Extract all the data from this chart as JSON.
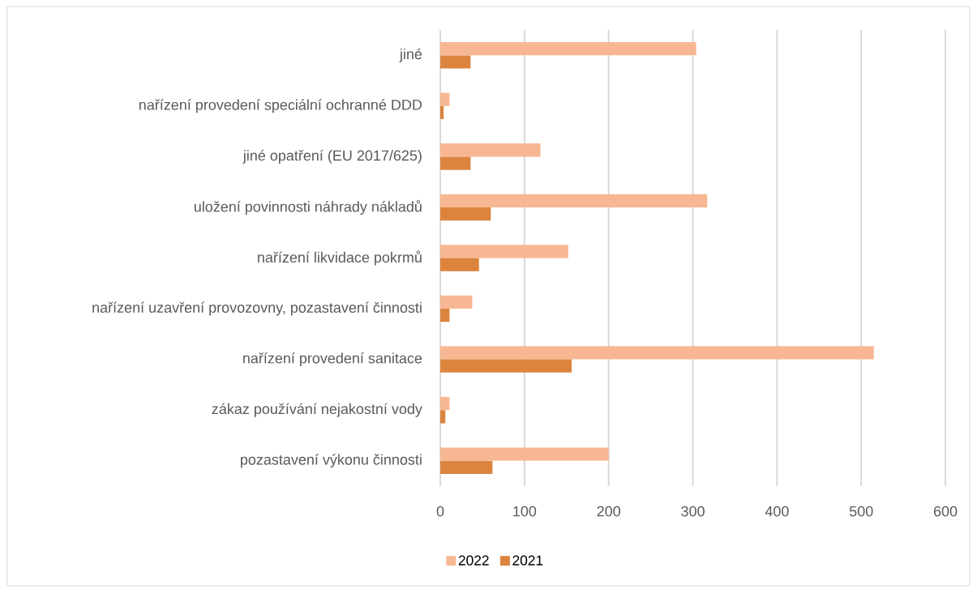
{
  "chart_data": {
    "type": "bar",
    "orientation": "horizontal",
    "categories": [
      "jiné",
      "nařízení provedení speciální ochranné DDD",
      "jiné opatření (EU 2017/625)",
      "uložení povinnosti náhrady nákladů",
      "nařízení likvidace pokrmů",
      "nařízení uzavření provozovny, pozastavení činnosti",
      "nařízení provedení sanitace",
      "zákaz používání nejakostní vody",
      "pozastavení výkonu činnosti"
    ],
    "series": [
      {
        "name": "2022",
        "color": "#f8b793",
        "values": [
          304,
          11,
          119,
          317,
          152,
          38,
          515,
          11,
          200
        ]
      },
      {
        "name": "2021",
        "color": "#dc843e",
        "values": [
          36,
          4,
          36,
          60,
          46,
          11,
          156,
          6,
          62
        ]
      }
    ],
    "xlim": [
      0,
      600
    ],
    "xticks": [
      0,
      100,
      200,
      300,
      400,
      500,
      600
    ],
    "grid": "x",
    "legend": "bottom"
  }
}
